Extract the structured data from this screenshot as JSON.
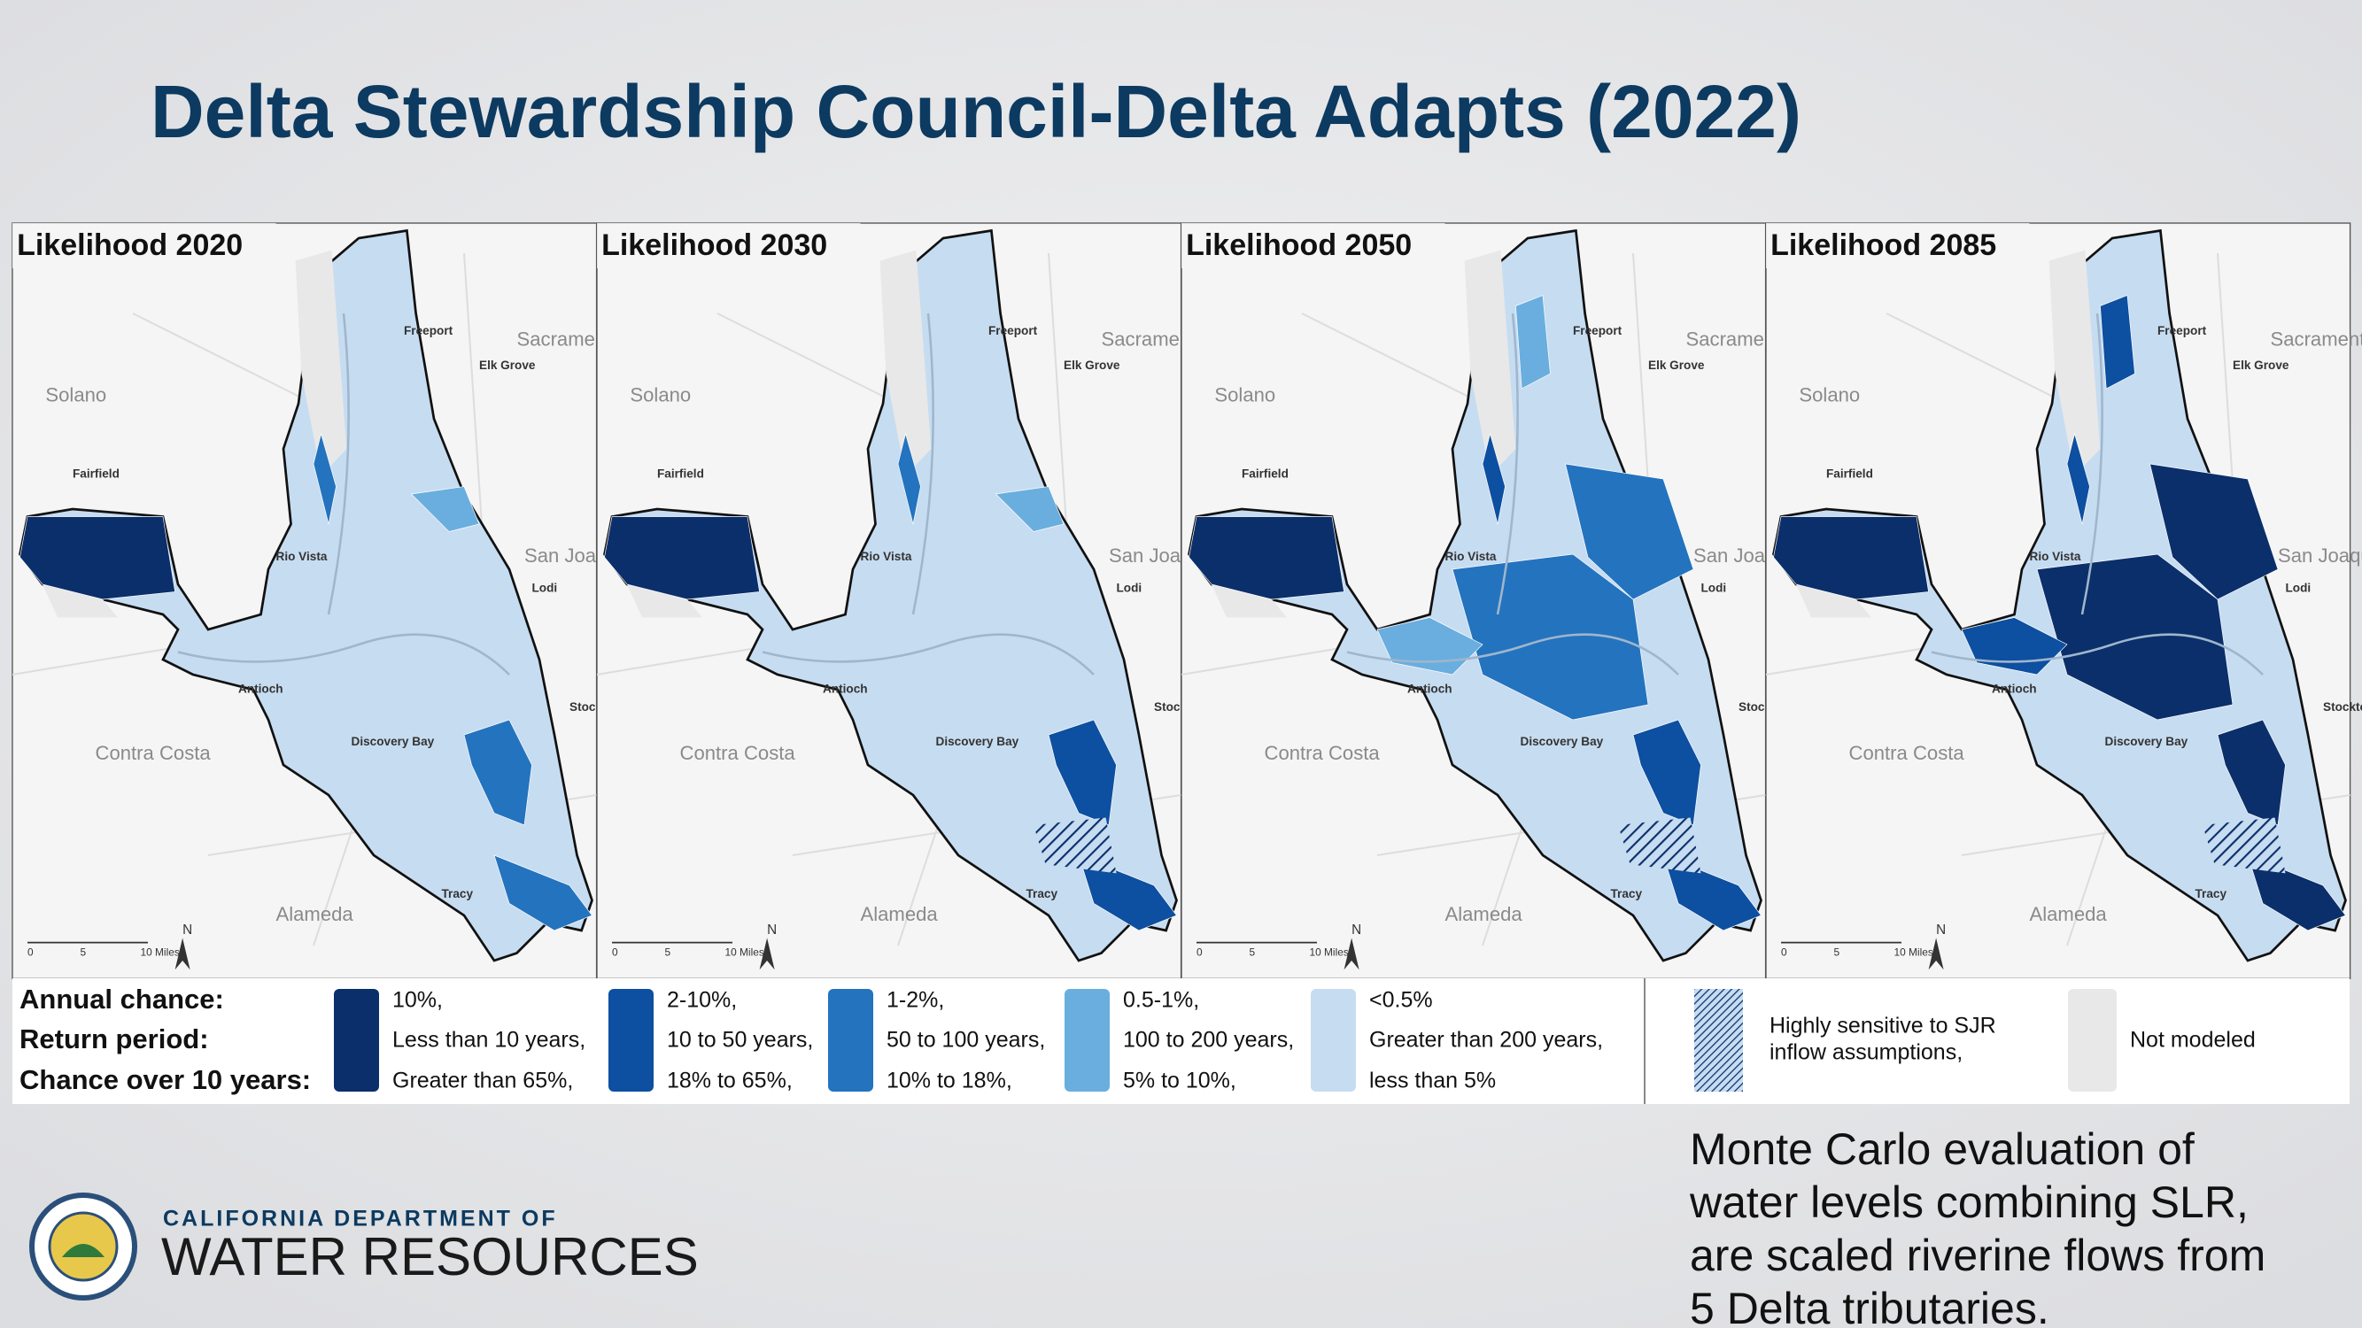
{
  "header": {
    "title": "Delta Stewardship Council-Delta Adapts (2022)"
  },
  "panels": [
    {
      "title": "Likelihood 2020"
    },
    {
      "title": "Likelihood 2030"
    },
    {
      "title": "Likelihood 2050"
    },
    {
      "title": "Likelihood 2085"
    }
  ],
  "map_labels": {
    "places": [
      "Sacramento",
      "Elk Grove",
      "Solano",
      "San Joaquin",
      "Contra Costa",
      "Alameda",
      "Fairfield",
      "Antioch",
      "Stockton",
      "Tracy",
      "Lodi",
      "Freeport",
      "Rio Vista",
      "Discovery Bay"
    ],
    "scale": [
      "0",
      "5",
      "10 Miles"
    ],
    "north": "N"
  },
  "legend": {
    "row_labels": [
      "Annual chance:",
      "Return period:",
      "Chance over 10 years:"
    ],
    "items": [
      {
        "color": "#0b2f6b",
        "lines": [
          "10%,",
          "Less than 10 years,",
          "Greater than 65%,"
        ]
      },
      {
        "color": "#0d4fa0",
        "lines": [
          "2-10%,",
          "10 to 50 years,",
          "18% to 65%,"
        ]
      },
      {
        "color": "#2473bf",
        "lines": [
          "1-2%,",
          "50 to 100 years,",
          "10% to 18%,"
        ]
      },
      {
        "color": "#6aaedf",
        "lines": [
          "0.5-1%,",
          "100 to 200 years,",
          "5% to 10%,"
        ]
      },
      {
        "color": "#c6dcf1",
        "lines": [
          "<0.5%",
          "Greater than 200 years,",
          "less than 5%"
        ]
      }
    ],
    "hatched": {
      "lines": [
        "Highly sensitive to SJR",
        "inflow assumptions,"
      ]
    },
    "not_modeled": {
      "color": "#e8e8e8",
      "label": "Not modeled"
    }
  },
  "note": {
    "lines": [
      "Monte Carlo evaluation of",
      "water levels combining SLR,",
      "are scaled riverine flows from",
      "5 Delta tributaries."
    ]
  },
  "logo": {
    "line1": "CALIFORNIA DEPARTMENT OF",
    "line2": "WATER RESOURCES"
  }
}
